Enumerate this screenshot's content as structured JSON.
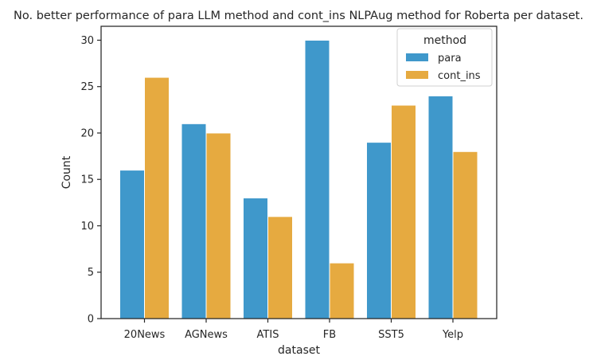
{
  "chart_data": {
    "type": "bar",
    "title": "No. better performance of para LLM method and cont_ins NLPAug method for Roberta per dataset.",
    "xlabel": "dataset",
    "ylabel": "Count",
    "categories": [
      "20News",
      "AGNews",
      "ATIS",
      "FB",
      "SST5",
      "Yelp"
    ],
    "series": [
      {
        "name": "para",
        "values": [
          16,
          21,
          13,
          30,
          19,
          24
        ],
        "color": "#3f98cb"
      },
      {
        "name": "cont_ins",
        "values": [
          26,
          20,
          11,
          6,
          23,
          18
        ],
        "color": "#e6aa40"
      }
    ],
    "ylim": [
      0,
      31.5
    ],
    "yticks": [
      0,
      5,
      10,
      15,
      20,
      25,
      30
    ],
    "grid": false,
    "legend": {
      "title": "method",
      "placement": "top-right"
    }
  }
}
